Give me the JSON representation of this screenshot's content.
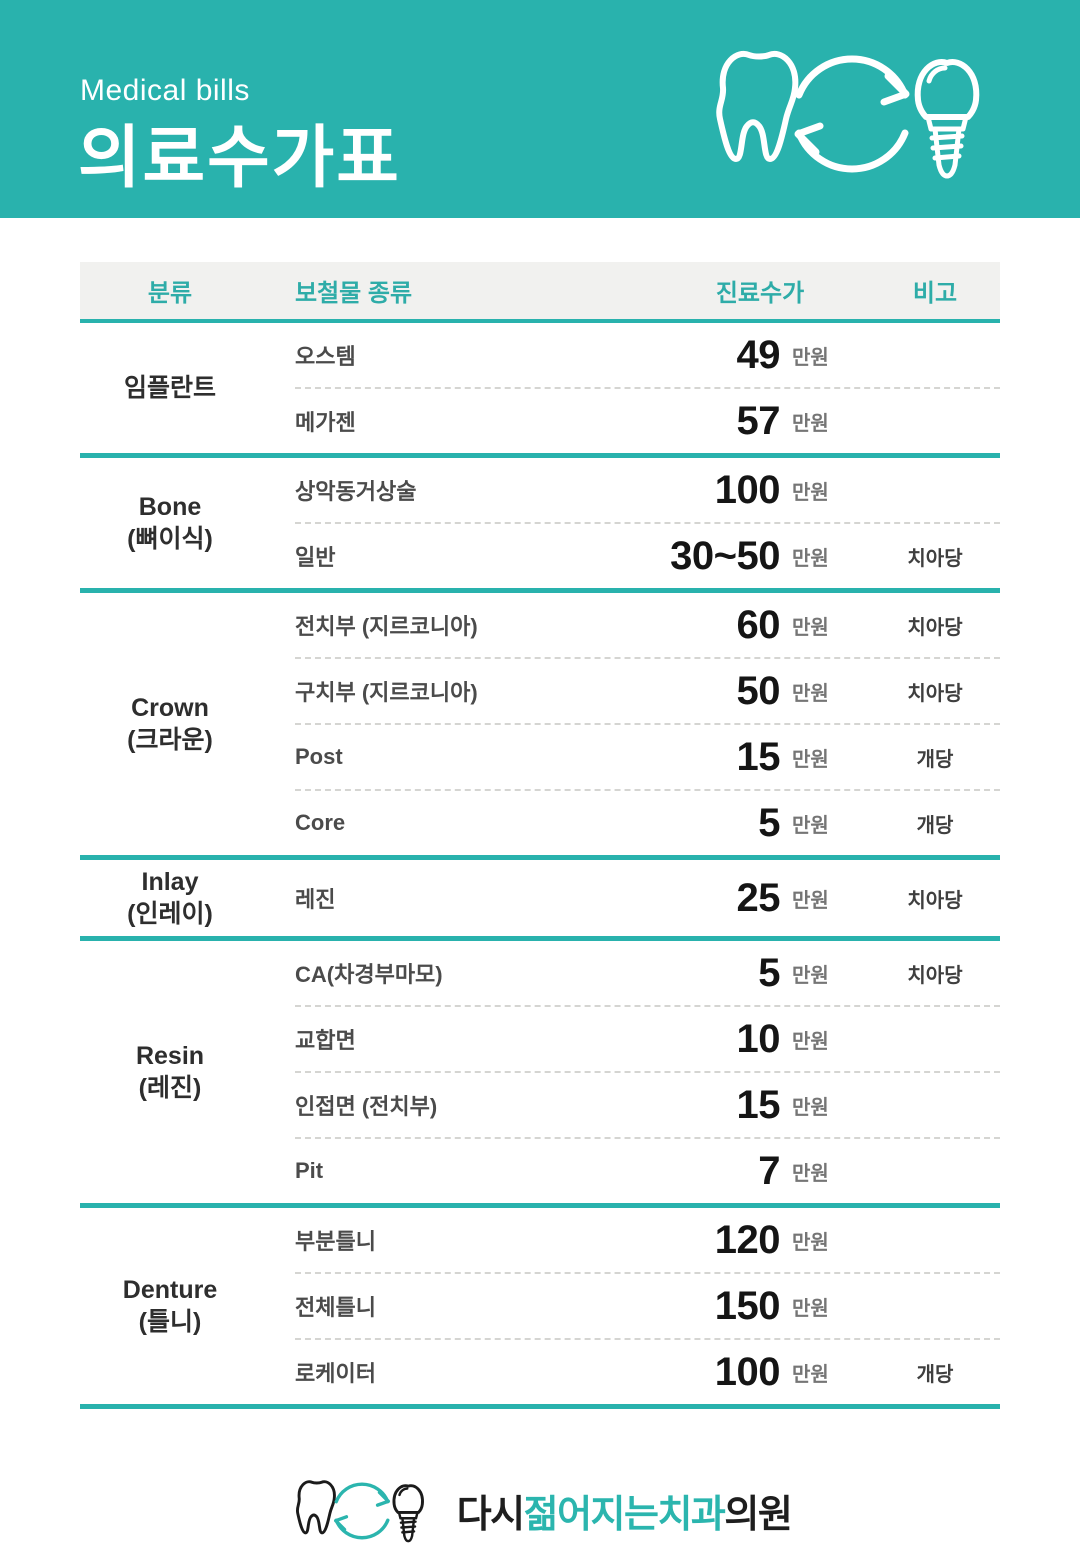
{
  "header": {
    "subtitle": "Medical bills",
    "title": "의료수가표"
  },
  "table": {
    "columns": [
      "분류",
      "보철물 종류",
      "진료수가",
      "비고"
    ],
    "unit": "만원",
    "groups": [
      {
        "category": "임플란트",
        "category_sub": "",
        "rows": [
          {
            "item": "오스템",
            "price": "49",
            "note": ""
          },
          {
            "item": "메가젠",
            "price": "57",
            "note": ""
          }
        ]
      },
      {
        "category": "Bone",
        "category_sub": "(뼈이식)",
        "rows": [
          {
            "item": "상악동거상술",
            "price": "100",
            "note": ""
          },
          {
            "item": "일반",
            "price": "30~50",
            "note": "치아당"
          }
        ]
      },
      {
        "category": "Crown",
        "category_sub": "(크라운)",
        "rows": [
          {
            "item": "전치부 (지르코니아)",
            "price": "60",
            "note": "치아당"
          },
          {
            "item": "구치부 (지르코니아)",
            "price": "50",
            "note": "치아당"
          },
          {
            "item": "Post",
            "price": "15",
            "note": "개당"
          },
          {
            "item": "Core",
            "price": "5",
            "note": "개당"
          }
        ]
      },
      {
        "category": "Inlay",
        "category_sub": "(인레이)",
        "rows": [
          {
            "item": "레진",
            "price": "25",
            "note": "치아당"
          }
        ]
      },
      {
        "category": "Resin",
        "category_sub": "(레진)",
        "rows": [
          {
            "item": "CA(차경부마모)",
            "price": "5",
            "note": "치아당"
          },
          {
            "item": "교합면",
            "price": "10",
            "note": ""
          },
          {
            "item": "인접면 (전치부)",
            "price": "15",
            "note": ""
          },
          {
            "item": "Pit",
            "price": "7",
            "note": ""
          }
        ]
      },
      {
        "category": "Denture",
        "category_sub": "(틀니)",
        "rows": [
          {
            "item": "부분틀니",
            "price": "120",
            "note": ""
          },
          {
            "item": "전체틀니",
            "price": "150",
            "note": ""
          },
          {
            "item": "로케이터",
            "price": "100",
            "note": "개당"
          }
        ]
      }
    ]
  },
  "footer": {
    "logo_prefix": "다시",
    "logo_highlight": "젊어지는치과",
    "logo_suffix": "의원"
  },
  "icons": {
    "hero": "tooth-implant-cycle-icon",
    "footer": "tooth-implant-cycle-icon"
  },
  "colors": {
    "teal": "#29B2AD",
    "header_row_bg": "#F1F1EF",
    "header_text": "#2EACA8",
    "price_text": "#151515",
    "unit_text": "#757575",
    "logo_highlight": "#2BB5AE"
  }
}
